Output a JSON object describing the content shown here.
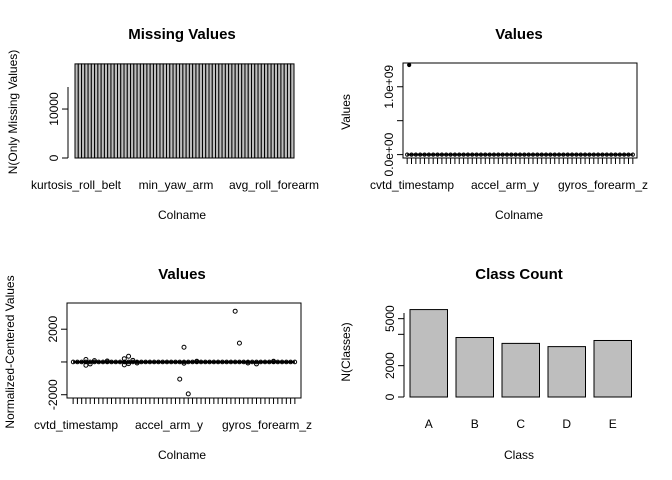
{
  "chart_data": [
    {
      "type": "bar",
      "title": "Missing Values",
      "xlabel": "Colname",
      "ylabel": "N(Only Missing Values)",
      "ylim": [
        0,
        19400
      ],
      "yticks": [
        0,
        10000
      ],
      "ytick_labels": [
        "0",
        "10000"
      ],
      "x_tick_labels": [
        "kurtosis_roll_belt",
        "min_yaw_arm",
        "avg_roll_forearm"
      ],
      "bar_count": 67,
      "values": [
        19216,
        19216,
        19216,
        19216,
        19216,
        19216,
        19216,
        19216,
        19216,
        19216,
        19216,
        19216,
        19216,
        19216,
        19216,
        19216,
        19216,
        19216,
        19216,
        19216,
        19216,
        19216,
        19216,
        19216,
        19216,
        19216,
        19216,
        19216,
        19216,
        19216,
        19216,
        19216,
        19216,
        19216,
        19216,
        19216,
        19216,
        19216,
        19216,
        19216,
        19216,
        19216,
        19216,
        19216,
        19216,
        19216,
        19216,
        19216,
        19216,
        19216,
        19216,
        19216,
        19216,
        19216,
        19216,
        19216,
        19216,
        19216,
        19216,
        19216,
        19216,
        19216,
        19216,
        19216,
        19216,
        19216,
        19216
      ]
    },
    {
      "type": "scatter",
      "title": "Values",
      "xlabel": "Colname",
      "ylabel": "Values",
      "ylim": [
        -50000000.0,
        1350000000.0
      ],
      "yticks": [
        0,
        500000000,
        1000000000
      ],
      "ytick_labels": [
        "0.0e+00",
        "",
        "1.0e+09"
      ],
      "x_tick_labels": [
        "cvtd_timestamp",
        "accel_arm_y",
        "gyros_forearm_z"
      ],
      "n_columns": 53,
      "outlier": {
        "x": 1,
        "y": 1320000000
      }
    },
    {
      "type": "scatter",
      "title": "Values",
      "xlabel": "Colname",
      "ylabel": "Normalized-Centered Values",
      "ylim": [
        -2200,
        3600
      ],
      "yticks": [
        -2000,
        0,
        2000
      ],
      "ytick_labels": [
        "-2000",
        "",
        "2000"
      ],
      "x_tick_labels": [
        "cvtd_timestamp",
        "accel_arm_y",
        "gyros_forearm_z"
      ],
      "n_columns": 53,
      "points": [
        [
          4,
          -200
        ],
        [
          4,
          150
        ],
        [
          5,
          -120
        ],
        [
          6,
          80
        ],
        [
          9,
          60
        ],
        [
          13,
          -180
        ],
        [
          13,
          200
        ],
        [
          14,
          -100
        ],
        [
          14,
          350
        ],
        [
          15,
          100
        ],
        [
          16,
          -60
        ],
        [
          26,
          -1050
        ],
        [
          27,
          900
        ],
        [
          27,
          -80
        ],
        [
          28,
          -1950
        ],
        [
          30,
          40
        ],
        [
          39,
          3100
        ],
        [
          40,
          1150
        ],
        [
          42,
          -60
        ],
        [
          44,
          -120
        ],
        [
          48,
          40
        ]
      ]
    },
    {
      "type": "bar",
      "title": "Class Count",
      "xlabel": "Class",
      "ylabel": "N(Classes)",
      "categories": [
        "A",
        "B",
        "C",
        "D",
        "E"
      ],
      "values": [
        5580,
        3797,
        3422,
        3216,
        3607
      ],
      "ylim": [
        0,
        6000
      ],
      "yticks": [
        0,
        2000,
        4000,
        5000
      ],
      "ytick_labels": [
        "0",
        "2000",
        "",
        "5000"
      ]
    }
  ]
}
